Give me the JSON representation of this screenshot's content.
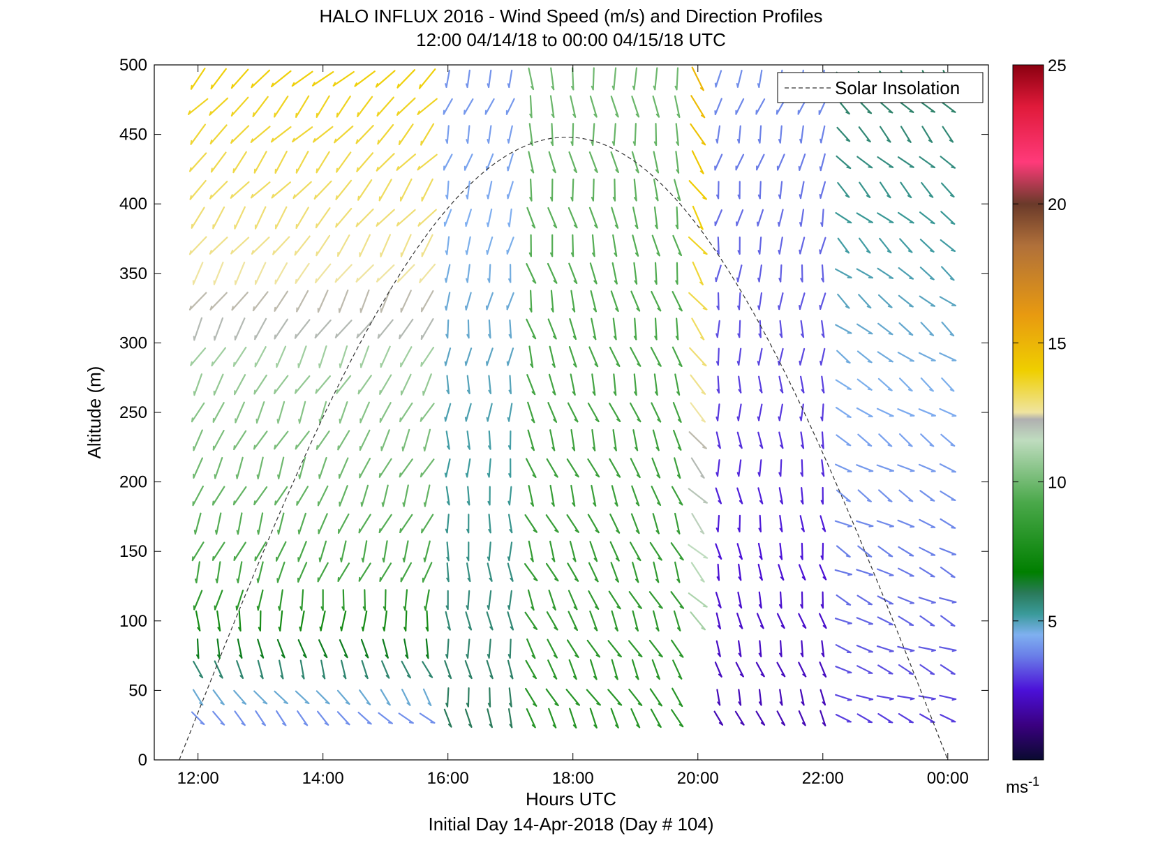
{
  "chart_data": {
    "type": "quiver",
    "title": "HALO INFLUX 2016 - Wind Speed (m/s) and Direction Profiles",
    "subtitle": "12:00 04/14/18 to 00:00 04/15/18  UTC",
    "xlabel": "Hours UTC",
    "ylabel": "Altitude (m)",
    "footer": "Initial Day 14-Apr-2018 (Day # 104)",
    "xlim": [
      11.3,
      24.65
    ],
    "ylim": [
      0,
      500
    ],
    "x_ticks": [
      12,
      14,
      16,
      18,
      20,
      22,
      24
    ],
    "x_tick_labels": [
      "12:00",
      "14:00",
      "16:00",
      "18:00",
      "20:00",
      "22:00",
      "00:00"
    ],
    "y_ticks": [
      0,
      50,
      100,
      150,
      200,
      250,
      300,
      350,
      400,
      450,
      500
    ],
    "y_tick_labels": [
      "0",
      "50",
      "100",
      "150",
      "200",
      "250",
      "300",
      "350",
      "400",
      "450",
      "500"
    ],
    "legend": {
      "label": "Solar Insolation",
      "position": "top-right"
    },
    "colorbar": {
      "range": [
        0,
        25
      ],
      "ticks": [
        5,
        10,
        15,
        20,
        25
      ],
      "tick_labels": [
        "5",
        "10",
        "15",
        "20",
        "25"
      ],
      "unit_base": "ms",
      "unit_exp": "-1"
    },
    "times": [
      12.0,
      12.33,
      12.67,
      13.0,
      13.33,
      13.67,
      14.0,
      14.33,
      14.67,
      15.0,
      15.33,
      15.67,
      16.0,
      16.33,
      16.67,
      17.0,
      17.33,
      17.67,
      18.0,
      18.33,
      18.67,
      19.0,
      19.33,
      19.67,
      20.0,
      20.33,
      20.67,
      21.0,
      21.33,
      21.67,
      22.0,
      22.33,
      22.67,
      23.0,
      23.33,
      23.67,
      24.0
    ],
    "altitudes": [
      30,
      45,
      65,
      80,
      100,
      115,
      135,
      150,
      170,
      190,
      210,
      230,
      250,
      270,
      290,
      310,
      330,
      350,
      370,
      390,
      410,
      430,
      450,
      470,
      490
    ],
    "wind_profiles": [
      {
        "t0": 12.0,
        "t1": 15.8,
        "y0": 30,
        "y1": 130,
        "speed": 4,
        "dir": 135,
        "speed_top": 9,
        "dir_top": 200
      },
      {
        "t0": 12.0,
        "t1": 15.8,
        "y0": 130,
        "y1": 300,
        "speed": 9,
        "dir": 200,
        "speed_top": 11,
        "dir_top": 210
      },
      {
        "t0": 12.0,
        "t1": 15.8,
        "y0": 300,
        "y1": 500,
        "speed": 12,
        "dir": 210,
        "speed_top": 14,
        "dir_top": 225
      },
      {
        "t0": 16.0,
        "t1": 17.0,
        "y0": 30,
        "y1": 500,
        "speed": 6,
        "dir": 170,
        "speed_top": 4,
        "dir_top": 200
      },
      {
        "t0": 17.0,
        "t1": 19.8,
        "y0": 30,
        "y1": 500,
        "speed": 8,
        "dir": 150,
        "speed_top": 10,
        "dir_top": 175
      },
      {
        "t0": 19.6,
        "t1": 20.0,
        "y0": 100,
        "y1": 500,
        "speed": 11,
        "dir": 135,
        "speed_top": 15,
        "dir_top": 150
      },
      {
        "t0": 20.2,
        "t1": 22.0,
        "y0": 30,
        "y1": 500,
        "speed": 2,
        "dir": 160,
        "speed_top": 4,
        "dir_top": 200
      },
      {
        "t0": 22.3,
        "t1": 24.0,
        "y0": 30,
        "y1": 500,
        "speed": 3,
        "dir": 110,
        "speed_top": 6,
        "dir_top": 140
      }
    ],
    "solar_insolation": {
      "start": 11.7,
      "peak": 17.9,
      "end": 24.0,
      "peak_altitude": 448
    }
  }
}
